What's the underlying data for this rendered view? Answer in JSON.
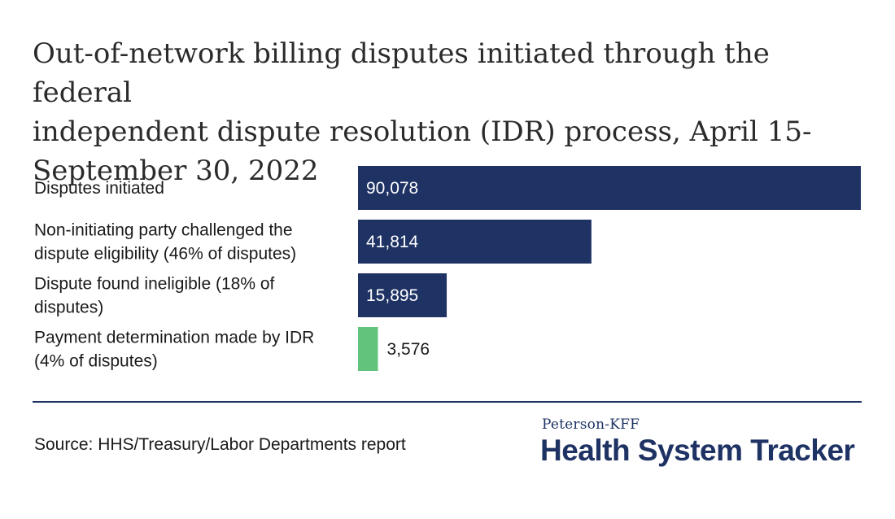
{
  "chart_data": {
    "type": "bar",
    "orientation": "horizontal",
    "title": "Out-of-network billing disputes initiated through the federal independent dispute resolution (IDR) process, April 15-September 30, 2022",
    "title_lines": [
      "Out-of-network billing disputes initiated through the federal",
      "independent dispute resolution (IDR) process, April 15-",
      "September 30, 2022"
    ],
    "categories": [
      "Disputes initiated",
      "Non-initiating party challenged the dispute eligibility (46% of disputes)",
      "Dispute found ineligible (18% of disputes)",
      "Payment determination made by IDR (4% of disputes)"
    ],
    "category_lines": [
      [
        "Disputes initiated"
      ],
      [
        "Non-initiating party challenged the",
        "dispute eligibility (46% of disputes)"
      ],
      [
        "Dispute found ineligible (18% of",
        "disputes)"
      ],
      [
        "Payment determination made by IDR",
        "(4% of disputes)"
      ]
    ],
    "values": [
      90078,
      41814,
      15895,
      3576
    ],
    "value_labels": [
      "90,078",
      "41,814",
      "15,895",
      "3,576"
    ],
    "bar_colors": [
      "#1e3264",
      "#1e3264",
      "#1e3264",
      "#62c47c"
    ],
    "xlim": [
      0,
      90078
    ],
    "xlabel": "",
    "ylabel": "",
    "grid": false
  },
  "footer": {
    "source": "Source: HHS/Treasury/Labor Departments report",
    "brand_small": "Peterson-KFF",
    "brand_big": "Health System Tracker"
  }
}
